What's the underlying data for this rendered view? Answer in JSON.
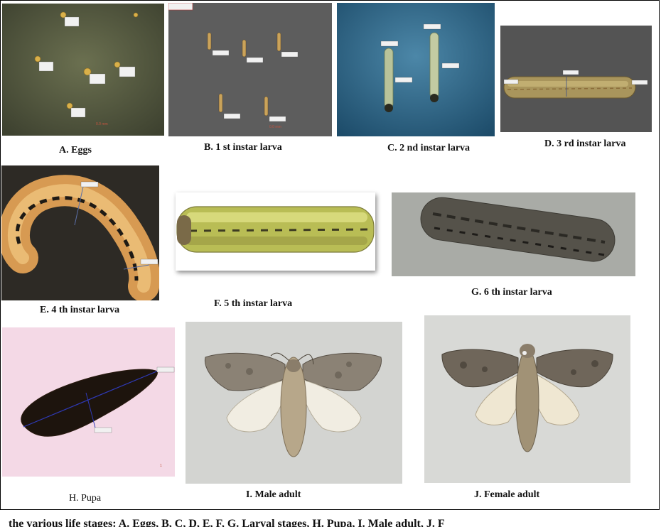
{
  "figure": {
    "panels": [
      {
        "id": "A",
        "caption": "A. Eggs"
      },
      {
        "id": "B",
        "caption": "B. 1 st instar larva"
      },
      {
        "id": "C",
        "caption": "C. 2 nd instar larva"
      },
      {
        "id": "D",
        "caption": "D. 3 rd instar larva"
      },
      {
        "id": "E",
        "caption": "E. 4 th instar larva"
      },
      {
        "id": "F",
        "caption": "F. 5 th instar larva"
      },
      {
        "id": "G",
        "caption": "G. 6 th instar larva"
      },
      {
        "id": "H",
        "caption": "H. Pupa"
      },
      {
        "id": "I",
        "caption": "I. Male adult"
      },
      {
        "id": "J",
        "caption": "J. Female adult"
      }
    ],
    "truncated_caption_line": "the various life stages: A. Eggs, B, C, D, E, F, G. Larval stages, H. Pupa, I. Male adult, J. F"
  },
  "colors": {
    "egg_bg": "#5b5f45",
    "larva_bg": "#5a5a5a",
    "second_instar_bg": "#2f6f95",
    "pupa_bg": "#f3d6e4",
    "adult_bg": "#d8d9d6"
  }
}
